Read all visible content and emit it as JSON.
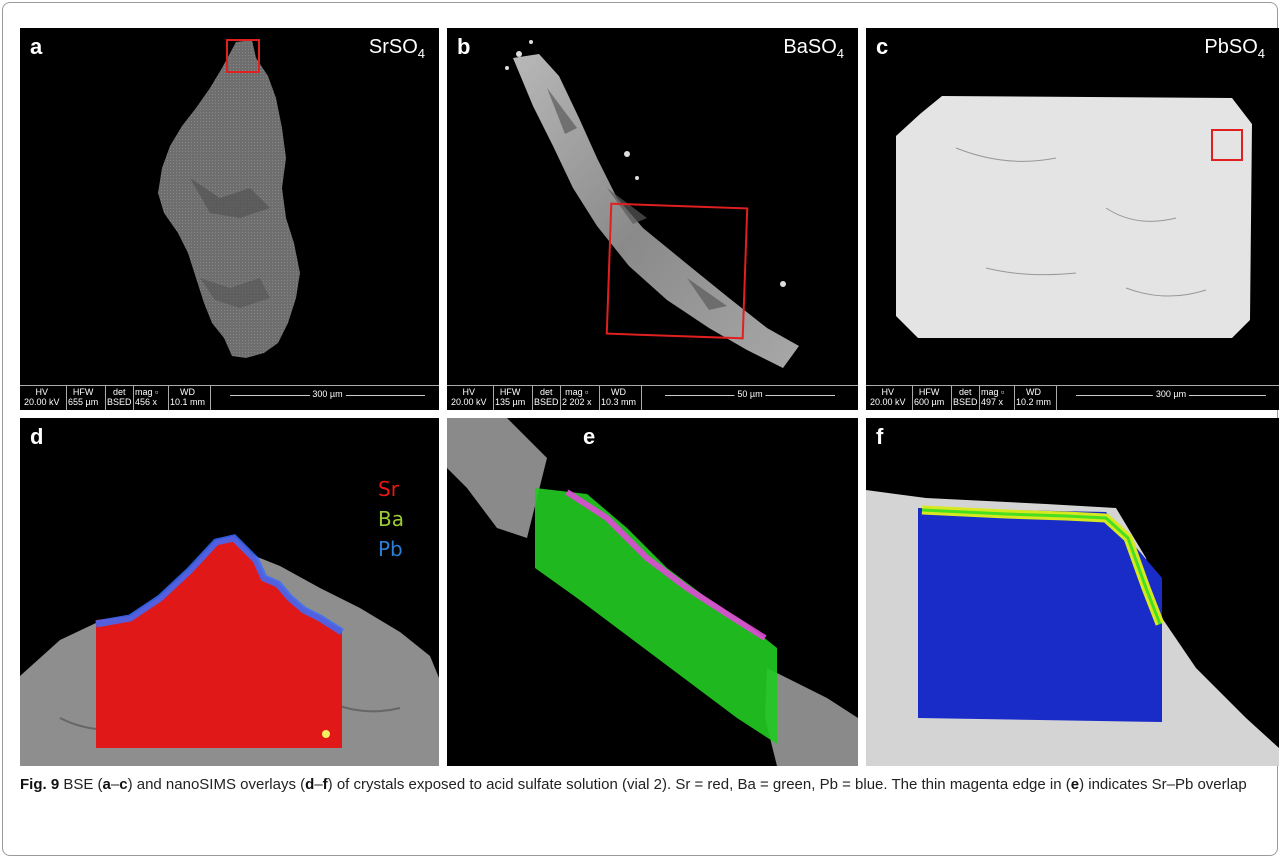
{
  "panels": {
    "a": {
      "label": "a",
      "mineral_base": "SrSO",
      "mineral_sub": "4"
    },
    "b": {
      "label": "b",
      "mineral_base": "BaSO",
      "mineral_sub": "4"
    },
    "c": {
      "label": "c",
      "mineral_base": "PbSO",
      "mineral_sub": "4"
    },
    "d": {
      "label": "d"
    },
    "e": {
      "label": "e"
    },
    "f": {
      "label": "f"
    }
  },
  "databars": {
    "a": {
      "hv_label": "HV",
      "hv": "20.00 kV",
      "hfw_label": "HFW",
      "hfw": "655 µm",
      "det_label": "det",
      "det": "BSED",
      "mag_label": "mag ▫",
      "mag": "456 x",
      "wd_label": "WD",
      "wd": "10.1 mm",
      "scale": "300 µm"
    },
    "b": {
      "hv_label": "HV",
      "hv": "20.00 kV",
      "hfw_label": "HFW",
      "hfw": "135 µm",
      "det_label": "det",
      "det": "BSED",
      "mag_label": "mag ▫",
      "mag": "2 202 x",
      "wd_label": "WD",
      "wd": "10.3 mm",
      "scale": "50 µm"
    },
    "c": {
      "hv_label": "HV",
      "hv": "20.00 kV",
      "hfw_label": "HFW",
      "hfw": "600 µm",
      "det_label": "det",
      "det": "BSED",
      "mag_label": "mag ▫",
      "mag": "497 x",
      "wd_label": "WD",
      "wd": "10.2 mm",
      "scale": "300 µm"
    }
  },
  "legend": {
    "items": [
      {
        "label": "Sr",
        "color": "#e81818"
      },
      {
        "label": "Ba",
        "color": "#9ccc34"
      },
      {
        "label": "Pb",
        "color": "#2b7fd6"
      }
    ]
  },
  "colors": {
    "sr": "#e81818",
    "ba": "#22dd22",
    "pb": "#1a2cc8",
    "overlap": "#e04ad8",
    "roi": "#e02020"
  },
  "caption": {
    "fig_label": "Fig. 9",
    "t1": "  BSE (",
    "b1": "a",
    "t2": "–",
    "b2": "c",
    "t3": ") and nanoSIMS overlays (",
    "b3": "d",
    "t4": "–",
    "b4": "f",
    "t5": ") of crystals exposed to acid sulfate solution (vial 2). Sr = red, Ba = green, Pb = blue. The thin magenta edge in (",
    "b5": "e",
    "t6": ") indicates Sr–Pb overlap"
  }
}
